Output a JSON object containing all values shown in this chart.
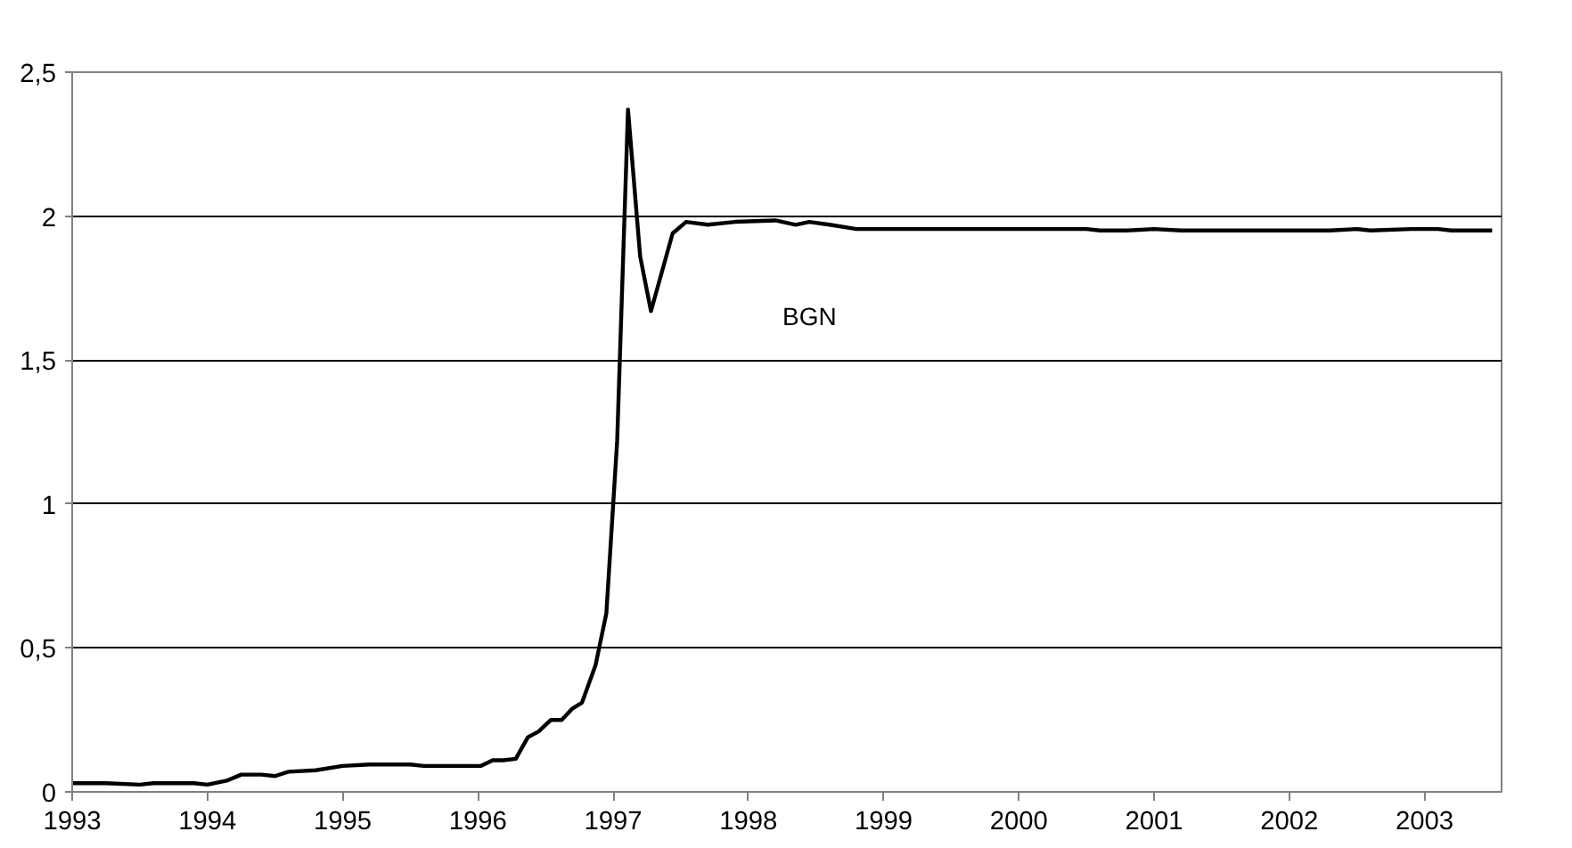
{
  "chart_data": {
    "type": "line",
    "x": [
      1993.0,
      1993.25,
      1993.5,
      1993.6,
      1993.9,
      1994.0,
      1994.15,
      1994.25,
      1994.4,
      1994.5,
      1994.6,
      1994.8,
      1995.0,
      1995.2,
      1995.5,
      1995.6,
      1995.9,
      1996.02,
      1996.11,
      1996.19,
      1996.28,
      1996.37,
      1996.45,
      1996.54,
      1996.62,
      1996.7,
      1996.77,
      1996.87,
      1996.95,
      1997.03,
      1997.11,
      1997.2,
      1997.28,
      1997.44,
      1997.54,
      1997.7,
      1997.9,
      1998.2,
      1998.35,
      1998.45,
      1998.6,
      1998.8,
      1999.0,
      1999.5,
      2000.0,
      2000.5,
      2000.6,
      2000.8,
      2001.0,
      2001.2,
      2001.5,
      2002.0,
      2002.3,
      2002.5,
      2002.6,
      2002.9,
      2003.1,
      2003.2,
      2003.5
    ],
    "series": [
      {
        "name": "BGN",
        "color": "#000000",
        "values": [
          0.03,
          0.03,
          0.025,
          0.03,
          0.03,
          0.025,
          0.04,
          0.06,
          0.06,
          0.055,
          0.07,
          0.075,
          0.09,
          0.095,
          0.095,
          0.09,
          0.09,
          0.09,
          0.11,
          0.11,
          0.115,
          0.19,
          0.21,
          0.25,
          0.25,
          0.29,
          0.31,
          0.44,
          0.62,
          1.22,
          2.37,
          1.86,
          1.67,
          1.94,
          1.98,
          1.97,
          1.98,
          1.985,
          1.97,
          1.98,
          1.97,
          1.955,
          1.955,
          1.955,
          1.955,
          1.955,
          1.95,
          1.95,
          1.955,
          1.95,
          1.95,
          1.95,
          1.95,
          1.955,
          1.95,
          1.955,
          1.955,
          1.95,
          1.95
        ]
      }
    ],
    "xlim": [
      1993,
      2003.57
    ],
    "xticks": [
      1993,
      1994,
      1995,
      1996,
      1997,
      1998,
      1999,
      2000,
      2001,
      2002,
      2003
    ],
    "ylim": [
      0,
      2.5
    ],
    "yticks": [
      0,
      {
        "value": 0.5,
        "label": "0,5"
      },
      1,
      {
        "value": 1.5,
        "label": "1,5"
      },
      2,
      {
        "value": 2.5,
        "label": "2,5"
      }
    ],
    "grid": "y"
  }
}
